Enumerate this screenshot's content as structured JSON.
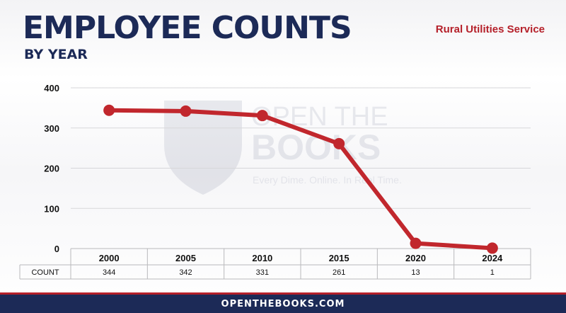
{
  "header": {
    "title": "EMPLOYEE COUNTS",
    "subtitle": "BY YEAR",
    "agency": "Rural Utilities Service"
  },
  "watermark": {
    "line1": "OPEN THE",
    "line2": "BOOKS",
    "tagline": "Every Dime. Online. In Real Time."
  },
  "footer": {
    "text": "OPENTHEBOOKS.COM"
  },
  "colors": {
    "navy": "#1c2a57",
    "red": "#b5202a",
    "series": "#c1272d"
  },
  "chart_data": {
    "type": "line",
    "categories": [
      "2000",
      "2005",
      "2010",
      "2015",
      "2020",
      "2024"
    ],
    "series": [
      {
        "values": [
          344,
          342,
          331,
          261,
          13,
          1
        ]
      }
    ],
    "yticks": [
      "0",
      "100",
      "200",
      "300",
      "400"
    ],
    "ylim": [
      0,
      400
    ],
    "grid": true,
    "table_row_label": "COUNT",
    "table_values": [
      "344",
      "342",
      "331",
      "261",
      "13",
      "1"
    ]
  }
}
